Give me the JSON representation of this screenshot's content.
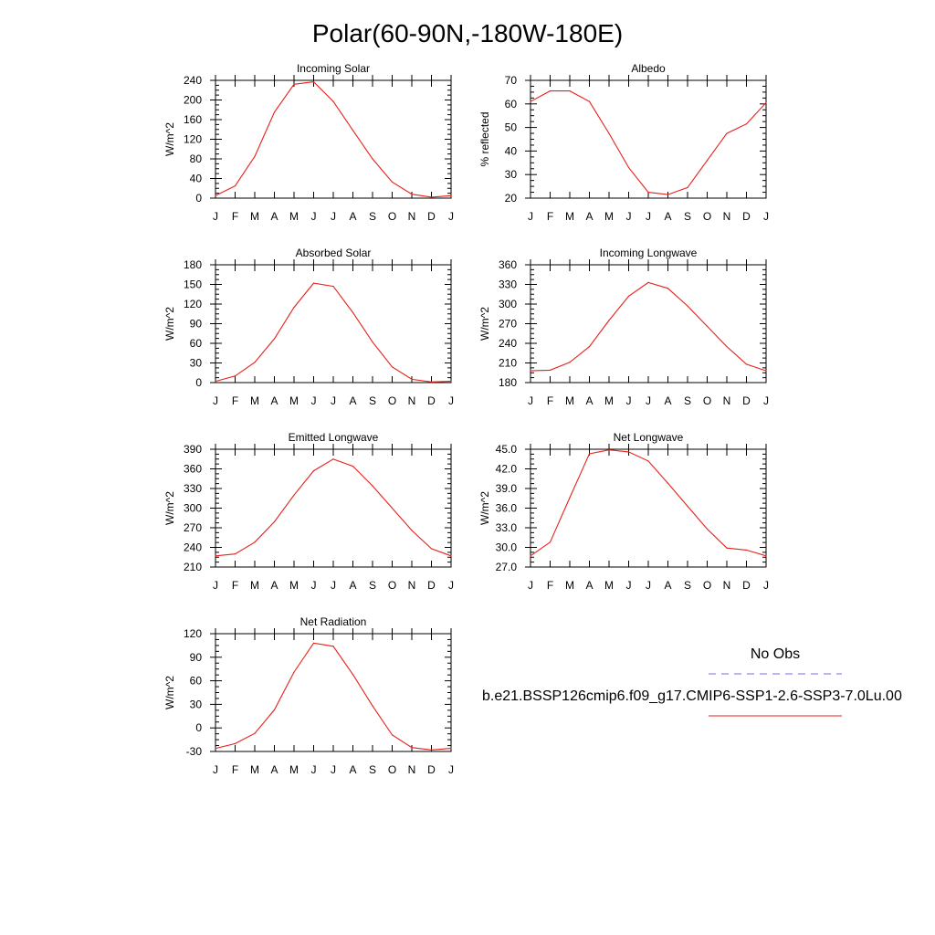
{
  "title": "Polar(60-90N,-180W-180E)",
  "months": [
    "J",
    "F",
    "M",
    "A",
    "M",
    "J",
    "J",
    "A",
    "S",
    "O",
    "N",
    "D",
    "J"
  ],
  "colors": {
    "model_line": "#e8201a",
    "obs_line": "#6f6ff0"
  },
  "legend": {
    "obs_label": "No Obs",
    "case_label": "b.e21.BSSP126cmip6.f09_g17.CMIP6-SSP1-2.6-SSP3-7.0Lu.00"
  },
  "chart_data": [
    {
      "type": "line",
      "title": "Incoming Solar",
      "ylabel": "W/m^2",
      "ylim": [
        0,
        240
      ],
      "yticks": [
        0,
        40,
        80,
        120,
        160,
        200,
        240
      ],
      "ytick_labels": [
        "0",
        "40",
        "80",
        "120",
        "160",
        "200",
        "240"
      ],
      "values": [
        5,
        25,
        85,
        175,
        232,
        237,
        197,
        138,
        80,
        33,
        8,
        2,
        5
      ]
    },
    {
      "type": "line",
      "title": "Albedo",
      "ylabel": "% reflected",
      "ylim": [
        20,
        70
      ],
      "yticks": [
        20,
        30,
        40,
        50,
        60,
        70
      ],
      "ytick_labels": [
        "20",
        "30",
        "40",
        "50",
        "60",
        "70"
      ],
      "values": [
        61,
        65.5,
        65.5,
        61,
        47.5,
        33,
        22.5,
        21.5,
        24.5,
        36,
        47.5,
        51.5,
        60.5
      ]
    },
    {
      "type": "line",
      "title": "Absorbed Solar",
      "ylabel": "W/m^2",
      "ylim": [
        0,
        180
      ],
      "yticks": [
        0,
        30,
        60,
        90,
        120,
        150,
        180
      ],
      "ytick_labels": [
        "0",
        "30",
        "60",
        "90",
        "120",
        "150",
        "180"
      ],
      "values": [
        2,
        10,
        31,
        67,
        115,
        152,
        147,
        107,
        62,
        24,
        5,
        1,
        2
      ]
    },
    {
      "type": "line",
      "title": "Incoming Longwave",
      "ylabel": "W/m^2",
      "ylim": [
        180,
        360
      ],
      "yticks": [
        180,
        210,
        240,
        270,
        300,
        330,
        360
      ],
      "ytick_labels": [
        "180",
        "210",
        "240",
        "270",
        "300",
        "330",
        "360"
      ],
      "values": [
        198,
        199,
        211,
        235,
        275,
        312,
        333,
        324,
        297,
        266,
        235,
        208,
        198
      ]
    },
    {
      "type": "line",
      "title": "Emitted Longwave",
      "ylabel": "W/m^2",
      "ylim": [
        210,
        390
      ],
      "yticks": [
        210,
        240,
        270,
        300,
        330,
        360,
        390
      ],
      "ytick_labels": [
        "210",
        "240",
        "270",
        "300",
        "330",
        "360",
        "390"
      ],
      "values": [
        227,
        230,
        248,
        279,
        320,
        357,
        375,
        364,
        334,
        300,
        266,
        238,
        227
      ]
    },
    {
      "type": "line",
      "title": "Net Longwave",
      "ylabel": "W/m^2",
      "ylim": [
        27,
        45
      ],
      "yticks": [
        27,
        30,
        33,
        36,
        39,
        42,
        45
      ],
      "ytick_labels": [
        "27.0",
        "30.0",
        "33.0",
        "36.0",
        "39.0",
        "42.0",
        "45.0"
      ],
      "values": [
        28.7,
        30.8,
        37.6,
        44.3,
        44.9,
        44.6,
        43.2,
        39.8,
        36.3,
        32.8,
        29.9,
        29.6,
        28.7
      ]
    },
    {
      "type": "line",
      "title": "Net Radiation",
      "ylabel": "W/m^2",
      "ylim": [
        -30,
        120
      ],
      "yticks": [
        -30,
        0,
        30,
        60,
        90,
        120
      ],
      "ytick_labels": [
        "-30",
        "0",
        "30",
        "60",
        "90",
        "120"
      ],
      "values": [
        -26,
        -20,
        -7,
        23,
        71,
        108,
        104,
        68,
        28,
        -9,
        -25,
        -28,
        -26
      ]
    }
  ]
}
